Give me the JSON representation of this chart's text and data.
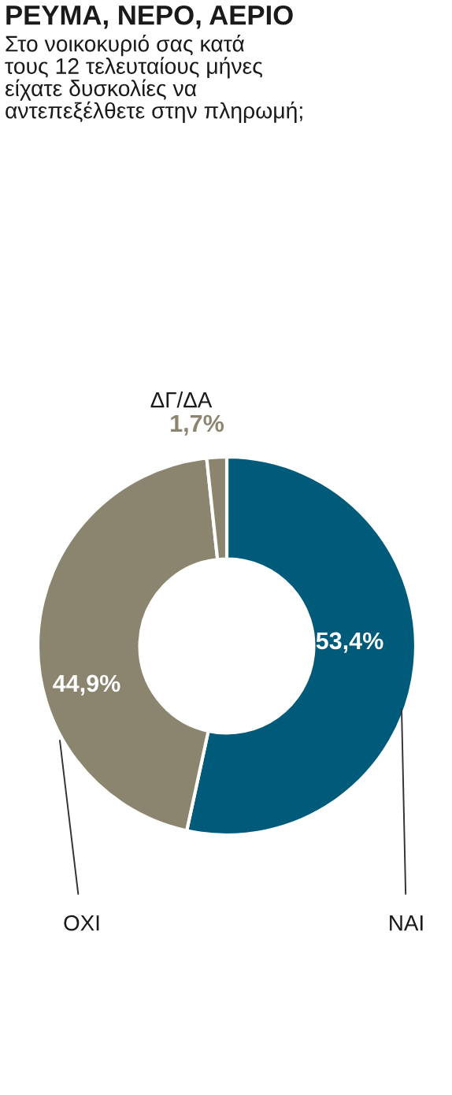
{
  "chart_data": {
    "type": "donut",
    "title": "ΡΕΥΜΑ, ΝΕΡΟ, ΑΕΡΙΟ",
    "subtitle": "Στο νοικοκυριό σας κατά\nτους 12 τελευταίους μήνες\nείχατε δυσκολίες να\nαντεπεξέλθετε στην πληρωμή;",
    "categories": [
      "ΝΑΙ",
      "ΟΧΙ",
      "ΔΓ/ΔΑ"
    ],
    "values": [
      53.4,
      44.9,
      1.7
    ],
    "colors": [
      "#005a7a",
      "#8b8570",
      "#8b8570"
    ],
    "value_labels": [
      "53,4%",
      "44,9%",
      "1,7%"
    ]
  }
}
